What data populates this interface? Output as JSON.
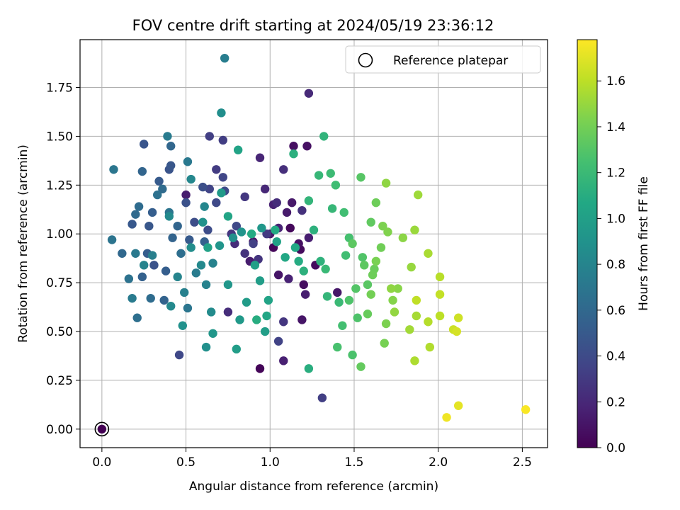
{
  "chart_data": {
    "type": "scatter",
    "title": "FOV centre drift starting at 2024/05/19 23:36:12",
    "xlabel": "Angular distance from reference (arcmin)",
    "ylabel": "Rotation from reference (arcmin)",
    "xlim": [
      -0.13,
      2.65
    ],
    "ylim": [
      -0.095,
      1.995
    ],
    "xticks": [
      0.0,
      0.5,
      1.0,
      1.5,
      2.0,
      2.5
    ],
    "xtick_labels": [
      "0.0",
      "0.5",
      "1.0",
      "1.5",
      "2.0",
      "2.5"
    ],
    "yticks": [
      0.0,
      0.25,
      0.5,
      0.75,
      1.0,
      1.25,
      1.5,
      1.75
    ],
    "ytick_labels": [
      "0.00",
      "0.25",
      "0.50",
      "0.75",
      "1.00",
      "1.25",
      "1.50",
      "1.75"
    ],
    "grid": true,
    "legend": {
      "placement": "top-right",
      "entries": [
        "Reference platepar"
      ]
    },
    "colorbar": {
      "label": "Hours from first FF file",
      "colormap": "viridis",
      "range": [
        0.0,
        1.78
      ],
      "ticks": [
        0.0,
        0.2,
        0.4,
        0.6,
        0.8,
        1.0,
        1.2,
        1.4,
        1.6
      ],
      "tick_labels": [
        "0.0",
        "0.2",
        "0.4",
        "0.6",
        "0.8",
        "1.0",
        "1.2",
        "1.4",
        "1.6"
      ]
    },
    "reference_point": {
      "x": 0.0,
      "y": 0.0
    },
    "points": [
      {
        "x": 0.94,
        "y": 0.31,
        "c": 0.02
      },
      {
        "x": 1.02,
        "y": 0.93,
        "c": 0.03
      },
      {
        "x": 1.12,
        "y": 1.03,
        "c": 0.04
      },
      {
        "x": 1.18,
        "y": 0.92,
        "c": 0.05
      },
      {
        "x": 1.27,
        "y": 0.84,
        "c": 0.05
      },
      {
        "x": 1.2,
        "y": 0.74,
        "c": 0.06
      },
      {
        "x": 1.14,
        "y": 1.45,
        "c": 0.07
      },
      {
        "x": 1.22,
        "y": 1.45,
        "c": 0.08
      },
      {
        "x": 1.17,
        "y": 0.95,
        "c": 0.08
      },
      {
        "x": 0.9,
        "y": 0.96,
        "c": 0.09
      },
      {
        "x": 1.05,
        "y": 0.79,
        "c": 0.1
      },
      {
        "x": 1.19,
        "y": 0.56,
        "c": 0.1
      },
      {
        "x": 1.4,
        "y": 0.7,
        "c": 0.11
      },
      {
        "x": 1.13,
        "y": 1.16,
        "c": 0.12
      },
      {
        "x": 1.0,
        "y": 1.0,
        "c": 0.12
      },
      {
        "x": 1.1,
        "y": 1.11,
        "c": 0.13
      },
      {
        "x": 0.88,
        "y": 0.86,
        "c": 0.14
      },
      {
        "x": 0.5,
        "y": 1.2,
        "c": 0.14
      },
      {
        "x": 1.21,
        "y": 0.69,
        "c": 0.15
      },
      {
        "x": 1.23,
        "y": 0.98,
        "c": 0.15
      },
      {
        "x": 1.08,
        "y": 0.35,
        "c": 0.16
      },
      {
        "x": 1.11,
        "y": 0.77,
        "c": 0.17
      },
      {
        "x": 1.02,
        "y": 1.15,
        "c": 0.17
      },
      {
        "x": 1.05,
        "y": 1.03,
        "c": 0.18
      },
      {
        "x": 0.94,
        "y": 1.39,
        "c": 0.19
      },
      {
        "x": 0.97,
        "y": 1.23,
        "c": 0.2
      },
      {
        "x": 1.23,
        "y": 1.72,
        "c": 0.21
      },
      {
        "x": 0.79,
        "y": 0.95,
        "c": 0.22
      },
      {
        "x": 1.04,
        "y": 1.16,
        "c": 0.23
      },
      {
        "x": 0.75,
        "y": 0.6,
        "c": 0.23
      },
      {
        "x": 1.08,
        "y": 1.33,
        "c": 0.24
      },
      {
        "x": 1.19,
        "y": 1.12,
        "c": 0.25
      },
      {
        "x": 0.85,
        "y": 0.9,
        "c": 0.26
      },
      {
        "x": 0.93,
        "y": 0.87,
        "c": 0.27
      },
      {
        "x": 1.08,
        "y": 0.55,
        "c": 0.28
      },
      {
        "x": 0.77,
        "y": 1.0,
        "c": 0.28
      },
      {
        "x": 0.85,
        "y": 1.19,
        "c": 0.29
      },
      {
        "x": 0.98,
        "y": 1.0,
        "c": 0.3
      },
      {
        "x": 0.68,
        "y": 1.33,
        "c": 0.31
      },
      {
        "x": 0.72,
        "y": 1.48,
        "c": 0.32
      },
      {
        "x": 1.31,
        "y": 0.16,
        "c": 0.33
      },
      {
        "x": 0.64,
        "y": 1.5,
        "c": 0.33
      },
      {
        "x": 0.9,
        "y": 0.95,
        "c": 0.34
      },
      {
        "x": 1.05,
        "y": 0.45,
        "c": 0.35
      },
      {
        "x": 0.64,
        "y": 1.23,
        "c": 0.36
      },
      {
        "x": 0.72,
        "y": 1.29,
        "c": 0.37
      },
      {
        "x": 0.46,
        "y": 0.38,
        "c": 0.38
      },
      {
        "x": 0.8,
        "y": 1.04,
        "c": 0.38
      },
      {
        "x": 0.68,
        "y": 1.16,
        "c": 0.39
      },
      {
        "x": 0.73,
        "y": 1.22,
        "c": 0.4
      },
      {
        "x": 0.63,
        "y": 1.02,
        "c": 0.41
      },
      {
        "x": 0.55,
        "y": 1.06,
        "c": 0.42
      },
      {
        "x": 0.6,
        "y": 1.24,
        "c": 0.43
      },
      {
        "x": 0.5,
        "y": 1.16,
        "c": 0.44
      },
      {
        "x": 0.31,
        "y": 0.84,
        "c": 0.45
      },
      {
        "x": 0.4,
        "y": 1.33,
        "c": 0.46
      },
      {
        "x": 0.25,
        "y": 1.46,
        "c": 0.47
      },
      {
        "x": 0.41,
        "y": 1.35,
        "c": 0.48
      },
      {
        "x": 0.28,
        "y": 1.04,
        "c": 0.48
      },
      {
        "x": 0.18,
        "y": 1.05,
        "c": 0.49
      },
      {
        "x": 0.52,
        "y": 0.97,
        "c": 0.5
      },
      {
        "x": 0.34,
        "y": 1.27,
        "c": 0.51
      },
      {
        "x": 0.27,
        "y": 0.9,
        "c": 0.52
      },
      {
        "x": 0.3,
        "y": 1.11,
        "c": 0.53
      },
      {
        "x": 0.38,
        "y": 0.81,
        "c": 0.53
      },
      {
        "x": 0.61,
        "y": 0.96,
        "c": 0.54
      },
      {
        "x": 0.24,
        "y": 0.78,
        "c": 0.55
      },
      {
        "x": 0.37,
        "y": 0.66,
        "c": 0.56
      },
      {
        "x": 0.42,
        "y": 0.98,
        "c": 0.57
      },
      {
        "x": 0.45,
        "y": 1.04,
        "c": 0.58
      },
      {
        "x": 0.24,
        "y": 1.32,
        "c": 0.58
      },
      {
        "x": 0.41,
        "y": 1.45,
        "c": 0.59
      },
      {
        "x": 0.12,
        "y": 0.9,
        "c": 0.6
      },
      {
        "x": 0.2,
        "y": 1.1,
        "c": 0.61
      },
      {
        "x": 0.36,
        "y": 1.23,
        "c": 0.62
      },
      {
        "x": 0.29,
        "y": 0.67,
        "c": 0.63
      },
      {
        "x": 0.22,
        "y": 1.14,
        "c": 0.63
      },
      {
        "x": 0.47,
        "y": 0.9,
        "c": 0.64
      },
      {
        "x": 0.21,
        "y": 0.57,
        "c": 0.65
      },
      {
        "x": 0.33,
        "y": 1.2,
        "c": 0.66
      },
      {
        "x": 0.16,
        "y": 0.77,
        "c": 0.67
      },
      {
        "x": 0.4,
        "y": 1.11,
        "c": 0.68
      },
      {
        "x": 0.06,
        "y": 0.97,
        "c": 0.68
      },
      {
        "x": 0.51,
        "y": 0.62,
        "c": 0.69
      },
      {
        "x": 0.07,
        "y": 1.33,
        "c": 0.7
      },
      {
        "x": 0.51,
        "y": 1.37,
        "c": 0.71
      },
      {
        "x": 0.2,
        "y": 0.9,
        "c": 0.72
      },
      {
        "x": 0.39,
        "y": 1.5,
        "c": 0.73
      },
      {
        "x": 0.18,
        "y": 0.67,
        "c": 0.73
      },
      {
        "x": 0.56,
        "y": 0.8,
        "c": 0.74
      },
      {
        "x": 0.73,
        "y": 1.9,
        "c": 0.75
      },
      {
        "x": 0.3,
        "y": 0.89,
        "c": 0.76
      },
      {
        "x": 0.49,
        "y": 0.7,
        "c": 0.77
      },
      {
        "x": 0.62,
        "y": 0.74,
        "c": 0.78
      },
      {
        "x": 0.66,
        "y": 0.85,
        "c": 0.78
      },
      {
        "x": 0.25,
        "y": 0.84,
        "c": 0.79
      },
      {
        "x": 0.45,
        "y": 0.78,
        "c": 0.8
      },
      {
        "x": 0.61,
        "y": 1.14,
        "c": 0.81
      },
      {
        "x": 0.53,
        "y": 1.28,
        "c": 0.82
      },
      {
        "x": 0.41,
        "y": 0.63,
        "c": 0.83
      },
      {
        "x": 0.59,
        "y": 0.84,
        "c": 0.83
      },
      {
        "x": 0.4,
        "y": 1.09,
        "c": 0.84
      },
      {
        "x": 0.65,
        "y": 0.6,
        "c": 0.85
      },
      {
        "x": 0.53,
        "y": 0.93,
        "c": 0.86
      },
      {
        "x": 0.71,
        "y": 1.62,
        "c": 0.87
      },
      {
        "x": 0.62,
        "y": 0.42,
        "c": 0.88
      },
      {
        "x": 0.78,
        "y": 0.98,
        "c": 0.88
      },
      {
        "x": 0.48,
        "y": 0.53,
        "c": 0.89
      },
      {
        "x": 0.6,
        "y": 1.06,
        "c": 0.9
      },
      {
        "x": 0.83,
        "y": 1.01,
        "c": 0.91
      },
      {
        "x": 0.7,
        "y": 0.94,
        "c": 0.92
      },
      {
        "x": 0.66,
        "y": 0.49,
        "c": 0.93
      },
      {
        "x": 0.75,
        "y": 0.74,
        "c": 0.93
      },
      {
        "x": 0.95,
        "y": 1.03,
        "c": 0.94
      },
      {
        "x": 0.82,
        "y": 0.56,
        "c": 0.95
      },
      {
        "x": 0.71,
        "y": 1.21,
        "c": 0.96
      },
      {
        "x": 0.86,
        "y": 0.65,
        "c": 0.97
      },
      {
        "x": 0.94,
        "y": 0.76,
        "c": 0.98
      },
      {
        "x": 0.8,
        "y": 0.41,
        "c": 0.98
      },
      {
        "x": 0.97,
        "y": 0.5,
        "c": 0.99
      },
      {
        "x": 0.91,
        "y": 0.84,
        "c": 1.0
      },
      {
        "x": 0.63,
        "y": 0.93,
        "c": 1.01
      },
      {
        "x": 1.04,
        "y": 0.96,
        "c": 1.02
      },
      {
        "x": 0.81,
        "y": 1.43,
        "c": 1.03
      },
      {
        "x": 0.99,
        "y": 0.66,
        "c": 1.03
      },
      {
        "x": 0.75,
        "y": 1.09,
        "c": 1.04
      },
      {
        "x": 0.98,
        "y": 0.58,
        "c": 1.05
      },
      {
        "x": 1.09,
        "y": 0.88,
        "c": 1.06
      },
      {
        "x": 1.15,
        "y": 0.93,
        "c": 1.07
      },
      {
        "x": 0.89,
        "y": 1.0,
        "c": 1.08
      },
      {
        "x": 1.03,
        "y": 1.02,
        "c": 1.08
      },
      {
        "x": 1.17,
        "y": 0.86,
        "c": 1.09
      },
      {
        "x": 0.92,
        "y": 0.56,
        "c": 1.1
      },
      {
        "x": 1.23,
        "y": 0.31,
        "c": 1.11
      },
      {
        "x": 1.14,
        "y": 1.41,
        "c": 1.12
      },
      {
        "x": 1.26,
        "y": 1.02,
        "c": 1.13
      },
      {
        "x": 1.2,
        "y": 0.81,
        "c": 1.13
      },
      {
        "x": 1.3,
        "y": 0.86,
        "c": 1.14
      },
      {
        "x": 1.32,
        "y": 1.5,
        "c": 1.15
      },
      {
        "x": 1.23,
        "y": 1.17,
        "c": 1.16
      },
      {
        "x": 1.34,
        "y": 0.68,
        "c": 1.17
      },
      {
        "x": 1.29,
        "y": 1.3,
        "c": 1.18
      },
      {
        "x": 1.37,
        "y": 1.13,
        "c": 1.18
      },
      {
        "x": 1.33,
        "y": 0.82,
        "c": 1.19
      },
      {
        "x": 1.41,
        "y": 0.65,
        "c": 1.2
      },
      {
        "x": 1.36,
        "y": 1.31,
        "c": 1.21
      },
      {
        "x": 1.39,
        "y": 1.25,
        "c": 1.22
      },
      {
        "x": 1.45,
        "y": 0.89,
        "c": 1.23
      },
      {
        "x": 1.44,
        "y": 1.11,
        "c": 1.23
      },
      {
        "x": 1.43,
        "y": 0.53,
        "c": 1.24
      },
      {
        "x": 1.47,
        "y": 0.98,
        "c": 1.25
      },
      {
        "x": 1.4,
        "y": 0.42,
        "c": 1.26
      },
      {
        "x": 1.49,
        "y": 0.38,
        "c": 1.27
      },
      {
        "x": 1.52,
        "y": 0.57,
        "c": 1.28
      },
      {
        "x": 1.47,
        "y": 0.66,
        "c": 1.28
      },
      {
        "x": 1.55,
        "y": 0.88,
        "c": 1.29
      },
      {
        "x": 1.51,
        "y": 0.72,
        "c": 1.3
      },
      {
        "x": 1.54,
        "y": 1.29,
        "c": 1.31
      },
      {
        "x": 1.58,
        "y": 0.74,
        "c": 1.32
      },
      {
        "x": 1.49,
        "y": 0.95,
        "c": 1.33
      },
      {
        "x": 1.56,
        "y": 0.84,
        "c": 1.33
      },
      {
        "x": 1.6,
        "y": 1.06,
        "c": 1.34
      },
      {
        "x": 1.54,
        "y": 0.32,
        "c": 1.35
      },
      {
        "x": 1.58,
        "y": 0.59,
        "c": 1.36
      },
      {
        "x": 1.62,
        "y": 0.82,
        "c": 1.37
      },
      {
        "x": 1.63,
        "y": 1.16,
        "c": 1.38
      },
      {
        "x": 1.61,
        "y": 0.79,
        "c": 1.38
      },
      {
        "x": 1.66,
        "y": 0.93,
        "c": 1.39
      },
      {
        "x": 1.6,
        "y": 0.69,
        "c": 1.4
      },
      {
        "x": 1.68,
        "y": 0.44,
        "c": 1.41
      },
      {
        "x": 1.63,
        "y": 0.86,
        "c": 1.42
      },
      {
        "x": 1.69,
        "y": 0.54,
        "c": 1.43
      },
      {
        "x": 1.67,
        "y": 1.04,
        "c": 1.43
      },
      {
        "x": 1.7,
        "y": 1.01,
        "c": 1.44
      },
      {
        "x": 1.73,
        "y": 0.66,
        "c": 1.45
      },
      {
        "x": 1.76,
        "y": 0.72,
        "c": 1.46
      },
      {
        "x": 1.79,
        "y": 0.98,
        "c": 1.47
      },
      {
        "x": 1.69,
        "y": 1.26,
        "c": 1.48
      },
      {
        "x": 1.72,
        "y": 0.72,
        "c": 1.48
      },
      {
        "x": 1.74,
        "y": 0.6,
        "c": 1.49
      },
      {
        "x": 1.84,
        "y": 0.83,
        "c": 1.5
      },
      {
        "x": 1.86,
        "y": 1.02,
        "c": 1.51
      },
      {
        "x": 1.88,
        "y": 1.2,
        "c": 1.52
      },
      {
        "x": 1.83,
        "y": 0.51,
        "c": 1.53
      },
      {
        "x": 1.87,
        "y": 0.58,
        "c": 1.54
      },
      {
        "x": 1.94,
        "y": 0.9,
        "c": 1.55
      },
      {
        "x": 1.86,
        "y": 0.35,
        "c": 1.56
      },
      {
        "x": 1.95,
        "y": 0.42,
        "c": 1.57
      },
      {
        "x": 1.94,
        "y": 0.55,
        "c": 1.58
      },
      {
        "x": 2.01,
        "y": 0.78,
        "c": 1.59
      },
      {
        "x": 2.01,
        "y": 0.58,
        "c": 1.6
      },
      {
        "x": 1.87,
        "y": 0.66,
        "c": 1.61
      },
      {
        "x": 2.01,
        "y": 0.69,
        "c": 1.62
      },
      {
        "x": 2.09,
        "y": 0.51,
        "c": 1.64
      },
      {
        "x": 2.12,
        "y": 0.57,
        "c": 1.65
      },
      {
        "x": 2.11,
        "y": 0.5,
        "c": 1.67
      },
      {
        "x": 2.12,
        "y": 0.12,
        "c": 1.71
      },
      {
        "x": 2.05,
        "y": 0.06,
        "c": 1.74
      },
      {
        "x": 2.52,
        "y": 0.1,
        "c": 1.77
      }
    ]
  }
}
